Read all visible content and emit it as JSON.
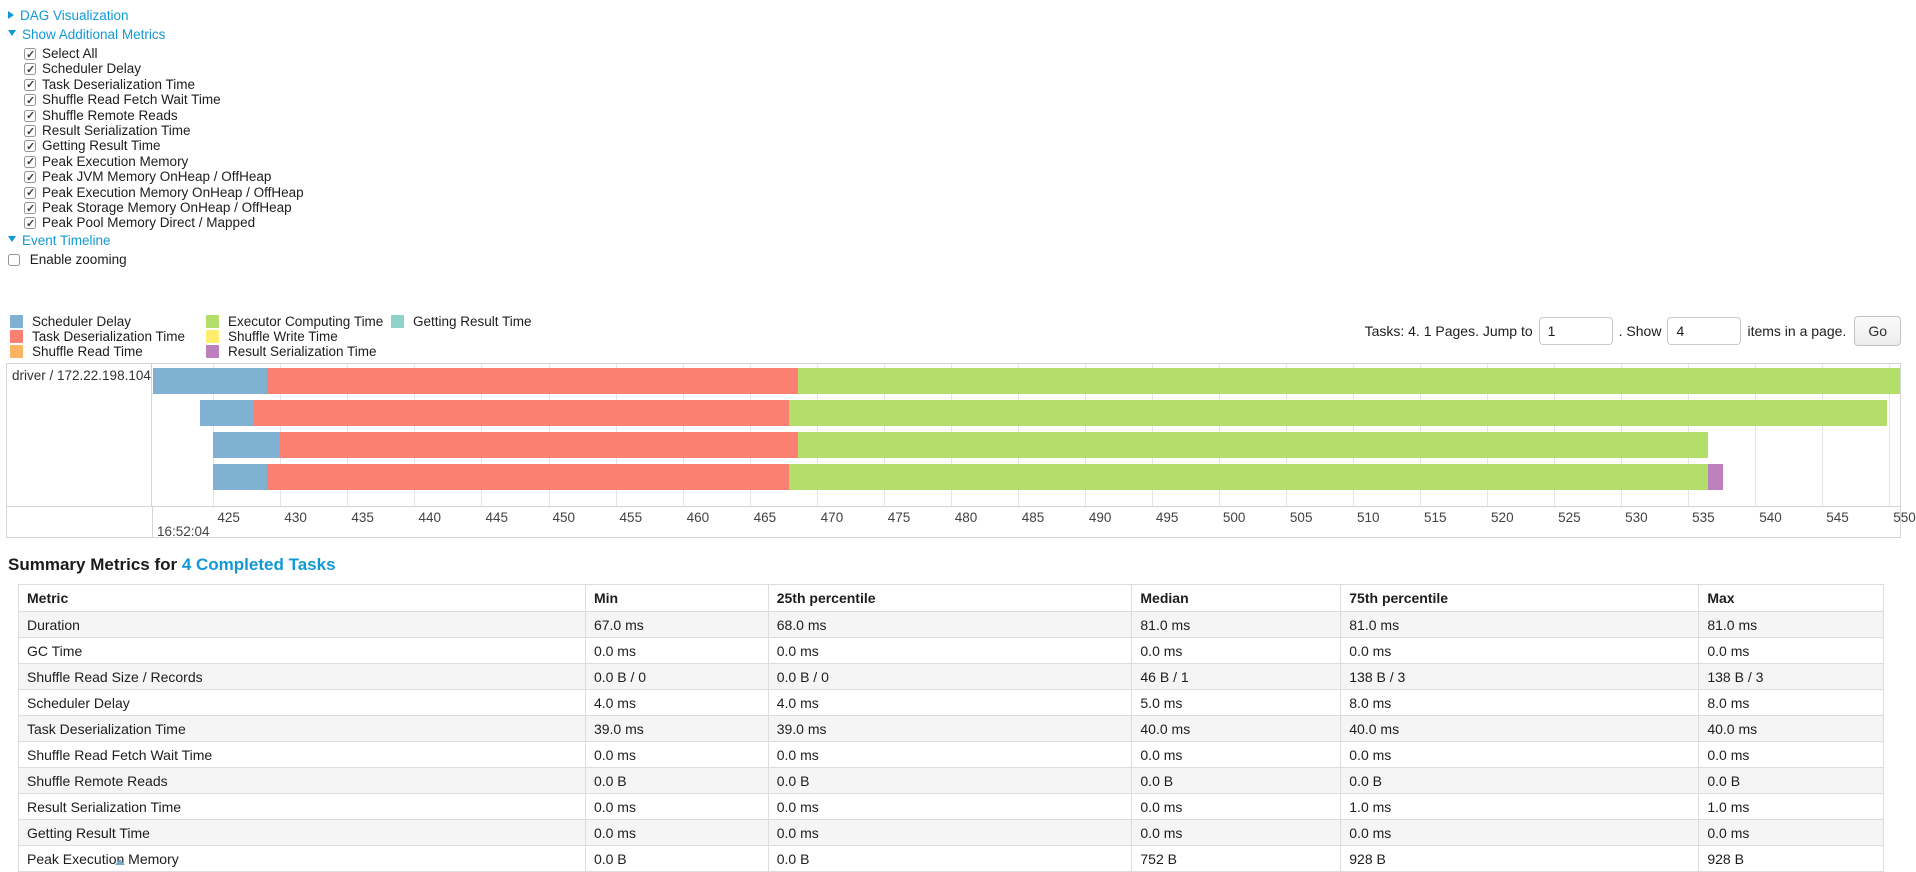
{
  "controls": {
    "dag_label": "DAG Visualization",
    "metrics_label": "Show Additional Metrics",
    "metrics_items": [
      {
        "label": "Select All",
        "checked": true
      },
      {
        "label": "Scheduler Delay",
        "checked": true
      },
      {
        "label": "Task Deserialization Time",
        "checked": true
      },
      {
        "label": "Shuffle Read Fetch Wait Time",
        "checked": true
      },
      {
        "label": "Shuffle Remote Reads",
        "checked": true
      },
      {
        "label": "Result Serialization Time",
        "checked": true
      },
      {
        "label": "Getting Result Time",
        "checked": true
      },
      {
        "label": "Peak Execution Memory",
        "checked": true
      },
      {
        "label": "Peak JVM Memory OnHeap / OffHeap",
        "checked": true
      },
      {
        "label": "Peak Execution Memory OnHeap / OffHeap",
        "checked": true
      },
      {
        "label": "Peak Storage Memory OnHeap / OffHeap",
        "checked": true
      },
      {
        "label": "Peak Pool Memory Direct / Mapped",
        "checked": true
      }
    ],
    "event_timeline_label": "Event Timeline",
    "enable_zooming": {
      "label": "Enable zooming",
      "checked": false
    }
  },
  "legend_columns": [
    [
      {
        "label": "Scheduler Delay",
        "color": "#80B1D3"
      },
      {
        "label": "Task Deserialization Time",
        "color": "#FB8072"
      },
      {
        "label": "Shuffle Read Time",
        "color": "#FDB462"
      }
    ],
    [
      {
        "label": "Executor Computing Time",
        "color": "#B3DE69"
      },
      {
        "label": "Shuffle Write Time",
        "color": "#FFED6F"
      },
      {
        "label": "Result Serialization Time",
        "color": "#BC80BD"
      }
    ],
    [
      {
        "label": "Getting Result Time",
        "color": "#8DD3C7"
      }
    ]
  ],
  "pagination": {
    "prefix": "Tasks: 4. 1 Pages. Jump to",
    "jump_value": "1",
    "mid": ". Show",
    "show_value": "4",
    "suffix": "items in a page.",
    "go_label": "Go"
  },
  "chart_data": {
    "type": "bar",
    "subtype": "horizontal-stacked-event-timeline",
    "title": "Event Timeline",
    "group_label": "driver / 172.22.198.104",
    "grid": true,
    "x_axis": {
      "min": 420.5,
      "max": 550.8,
      "tick_step": 5,
      "ticks": [
        425,
        430,
        435,
        440,
        445,
        450,
        455,
        460,
        465,
        470,
        475,
        480,
        485,
        490,
        495,
        500,
        505,
        510,
        515,
        520,
        525,
        530,
        535,
        540,
        545,
        550
      ],
      "major_tick_label": "16:52:04",
      "units": "milliseconds within second 16:52:04"
    },
    "colors": {
      "scheduler-delay": "#80B1D3",
      "task-deserialization": "#FB8072",
      "executor-computing": "#B3DE69",
      "result-serialization": "#BC80BD"
    },
    "tasks": [
      {
        "segments": [
          [
            "scheduler-delay",
            420.5,
            429.0
          ],
          [
            "task-deserialization",
            429.0,
            468.6
          ],
          [
            "executor-computing",
            468.6,
            550.8
          ]
        ]
      },
      {
        "segments": [
          [
            "scheduler-delay",
            424.0,
            428.0
          ],
          [
            "task-deserialization",
            428.0,
            467.9
          ],
          [
            "executor-computing",
            467.9,
            549.8
          ]
        ]
      },
      {
        "segments": [
          [
            "scheduler-delay",
            425.0,
            430.0
          ],
          [
            "task-deserialization",
            430.0,
            468.6
          ],
          [
            "executor-computing",
            468.6,
            536.5
          ]
        ]
      },
      {
        "segments": [
          [
            "scheduler-delay",
            425.0,
            429.0
          ],
          [
            "task-deserialization",
            429.0,
            467.9
          ],
          [
            "executor-computing",
            467.9,
            536.5
          ],
          [
            "result-serialization",
            536.5,
            537.6
          ]
        ]
      }
    ]
  },
  "summary": {
    "title_prefix": "Summary Metrics for ",
    "completed_tasks_link": "4 Completed Tasks"
  },
  "table": {
    "headers": [
      "Metric",
      "Min",
      "25th percentile",
      "Median",
      "75th percentile",
      "Max"
    ],
    "col_widths_pct": [
      30.4,
      9.8,
      19.5,
      11.2,
      19.2,
      9.9
    ],
    "rows": [
      [
        "Duration",
        "67.0 ms",
        "68.0 ms",
        "81.0 ms",
        "81.0 ms",
        "81.0 ms"
      ],
      [
        "GC Time",
        "0.0 ms",
        "0.0 ms",
        "0.0 ms",
        "0.0 ms",
        "0.0 ms"
      ],
      [
        "Shuffle Read Size / Records",
        "0.0 B / 0",
        "0.0 B / 0",
        "46 B / 1",
        "138 B / 3",
        "138 B / 3"
      ],
      [
        "Scheduler Delay",
        "4.0 ms",
        "4.0 ms",
        "5.0 ms",
        "8.0 ms",
        "8.0 ms"
      ],
      [
        "Task Deserialization Time",
        "39.0 ms",
        "39.0 ms",
        "40.0 ms",
        "40.0 ms",
        "40.0 ms"
      ],
      [
        "Shuffle Read Fetch Wait Time",
        "0.0 ms",
        "0.0 ms",
        "0.0 ms",
        "0.0 ms",
        "0.0 ms"
      ],
      [
        "Shuffle Remote Reads",
        "0.0 B",
        "0.0 B",
        "0.0 B",
        "0.0 B",
        "0.0 B"
      ],
      [
        "Result Serialization Time",
        "0.0 ms",
        "0.0 ms",
        "0.0 ms",
        "1.0 ms",
        "1.0 ms"
      ],
      [
        "Getting Result Time",
        "0.0 ms",
        "0.0 ms",
        "0.0 ms",
        "0.0 ms",
        "0.0 ms"
      ],
      [
        "Peak Execution Memory",
        "0.0 B",
        "0.0 B",
        "752 B",
        "928 B",
        "928 B"
      ]
    ]
  },
  "colors": {
    "link": "#1099d6"
  }
}
